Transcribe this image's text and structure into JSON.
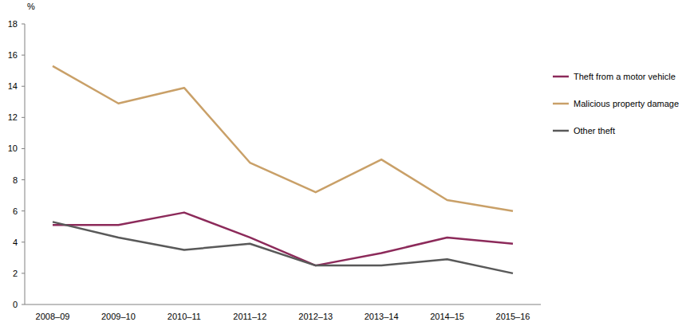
{
  "chart_data": {
    "type": "line",
    "y_label": "%",
    "categories": [
      "2008–09",
      "2009–10",
      "2010–11",
      "2011–12",
      "2012–13",
      "2013–14",
      "2014–15",
      "2015–16"
    ],
    "series": [
      {
        "name": "Theft from a motor vehicle",
        "color": "#8c2a5a",
        "values": [
          5.1,
          5.1,
          5.9,
          4.3,
          2.5,
          3.3,
          4.3,
          3.9
        ]
      },
      {
        "name": "Malicious property damage",
        "color": "#c9a068",
        "values": [
          15.3,
          12.9,
          13.9,
          9.1,
          7.2,
          9.3,
          6.7,
          6.0
        ]
      },
      {
        "name": "Other theft",
        "color": "#595959",
        "values": [
          5.3,
          4.3,
          3.5,
          3.9,
          2.5,
          2.5,
          2.9,
          2.0
        ]
      }
    ],
    "ylim": [
      0,
      18
    ],
    "yticks": [
      0,
      2,
      4,
      6,
      8,
      10,
      12,
      14,
      16,
      18
    ],
    "grid": false,
    "legend": "right"
  }
}
